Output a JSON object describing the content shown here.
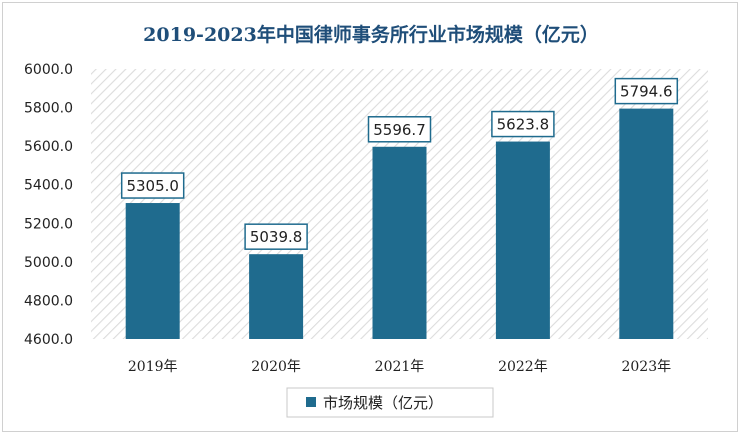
{
  "chart_data": {
    "type": "bar",
    "title": "2019-2023年中国律师事务所行业市场规模（亿元）",
    "categories": [
      "2019年",
      "2020年",
      "2021年",
      "2022年",
      "2023年"
    ],
    "series": [
      {
        "name": "市场规模（亿元）",
        "values": [
          5305.0,
          5039.8,
          5596.7,
          5623.8,
          5794.6
        ]
      }
    ],
    "value_labels": [
      "5305.0",
      "5039.8",
      "5596.7",
      "5623.8",
      "5794.6"
    ],
    "yticks": [
      "4600.0",
      "4800.0",
      "5000.0",
      "5200.0",
      "5400.0",
      "5600.0",
      "5800.0",
      "6000.0"
    ],
    "ylim": [
      4600,
      6000
    ],
    "xlabel": "",
    "ylabel": "",
    "grid": false,
    "legend_position": "bottom",
    "colors": {
      "bar": "#1f6b8e",
      "title": "#1f4e79",
      "label_border": "#1f6b8e",
      "hatch": "#dcdcdc"
    }
  }
}
